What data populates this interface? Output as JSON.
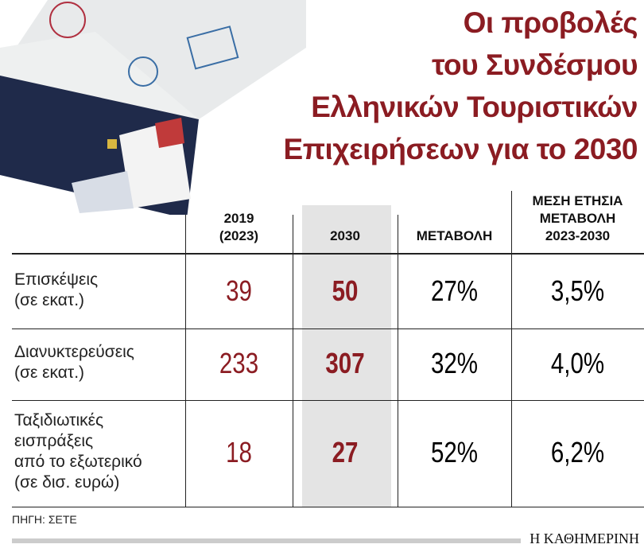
{
  "header": {
    "title": [
      "Οι προβολές",
      "του Συνδέσμου",
      "Ελληνικών Τουριστικών",
      "Επιχειρήσεων για το 2030"
    ]
  },
  "table": {
    "columns": [
      [
        "2019",
        "(2023)"
      ],
      [
        "2030"
      ],
      [
        "ΜΕΤΑΒΟΛΗ"
      ],
      [
        "ΜΕΣΗ ΕΤΗΣΙΑ",
        "ΜΕΤΑΒΟΛΗ",
        "2023-2030"
      ]
    ],
    "rows": [
      {
        "label": [
          "Επισκέψεις",
          "(σε εκατ.)"
        ],
        "cells": [
          "39",
          "50",
          "27%",
          "3,5%"
        ]
      },
      {
        "label": [
          "Διανυκτερεύσεις",
          "(σε εκατ.)"
        ],
        "cells": [
          "233",
          "307",
          "32%",
          "4,0%"
        ]
      },
      {
        "label": [
          "Ταξιδιωτικές",
          "εισπράξεις",
          "από το εξωτερικό",
          "(σε δισ. ευρώ)"
        ],
        "cells": [
          "18",
          "27",
          "52%",
          "6,2%"
        ]
      }
    ]
  },
  "footer": {
    "source": "ΠΗΓΗ: ΣΕΤΕ",
    "brand": "Η ΚΑΘΗΜΕΡΙΝΗ"
  }
}
